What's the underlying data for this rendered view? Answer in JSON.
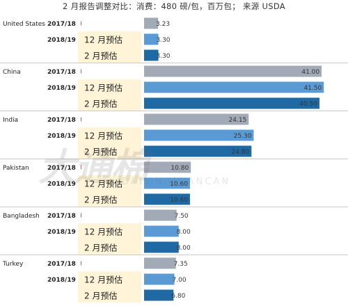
{
  "title": "2 月报告调整对比：消费：480 磅/包，百万包； 来源 USDA",
  "chart_data": {
    "type": "bar",
    "orientation": "horizontal",
    "title": "2 月报告调整对比：消费：480 磅/包，百万包； 来源 USDA",
    "groups": [
      {
        "country": "United States",
        "rows": [
          {
            "year": "2017/18",
            "estimate": "",
            "value": 3.23,
            "label": "3.23",
            "series": "2017/18"
          },
          {
            "year": "2018/19",
            "estimate": "12 月预估",
            "value": 3.3,
            "label": "3.30",
            "series": "12 月预估"
          },
          {
            "year": "",
            "estimate": "2 月预估",
            "value": 3.3,
            "label": "3.30",
            "series": "2 月预估"
          }
        ]
      },
      {
        "country": "China",
        "rows": [
          {
            "year": "2017/18",
            "estimate": "",
            "value": 41.0,
            "label": "41.00",
            "series": "2017/18"
          },
          {
            "year": "2018/19",
            "estimate": "12 月预估",
            "value": 41.5,
            "label": "41.50",
            "series": "12 月预估"
          },
          {
            "year": "",
            "estimate": "2 月预估",
            "value": 40.5,
            "label": "40.50",
            "series": "2 月预估"
          }
        ]
      },
      {
        "country": "India",
        "rows": [
          {
            "year": "2017/18",
            "estimate": "",
            "value": 24.15,
            "label": "24.15",
            "series": "2017/18"
          },
          {
            "year": "2018/19",
            "estimate": "12 月预估",
            "value": 25.3,
            "label": "25.30",
            "series": "12 月预估"
          },
          {
            "year": "",
            "estimate": "2 月预估",
            "value": 24.8,
            "label": "24.80",
            "series": "2 月预估"
          }
        ]
      },
      {
        "country": "Pakistan",
        "rows": [
          {
            "year": "2017/18",
            "estimate": "",
            "value": 10.8,
            "label": "10.80",
            "series": "2017/18"
          },
          {
            "year": "2018/19",
            "estimate": "12 月预估",
            "value": 10.6,
            "label": "10.60",
            "series": "12 月预估"
          },
          {
            "year": "",
            "estimate": "2 月预估",
            "value": 10.6,
            "label": "10.60",
            "series": "2 月预估"
          }
        ]
      },
      {
        "country": "Bangladesh",
        "rows": [
          {
            "year": "2017/18",
            "estimate": "",
            "value": 7.5,
            "label": "7.50",
            "series": "2017/18"
          },
          {
            "year": "2018/19",
            "estimate": "12 月预估",
            "value": 8.0,
            "label": "8.00",
            "series": "12 月预估"
          },
          {
            "year": "",
            "estimate": "2 月预估",
            "value": 8.0,
            "label": "8.00",
            "series": "2 月预估"
          }
        ]
      },
      {
        "country": "Turkey",
        "rows": [
          {
            "year": "2017/18",
            "estimate": "",
            "value": 7.35,
            "label": "7.35",
            "series": "2017/18"
          },
          {
            "year": "2018/19",
            "estimate": "12 月预估",
            "value": 7.0,
            "label": "7.00",
            "series": "12 月预估"
          },
          {
            "year": "",
            "estimate": "2 月预估",
            "value": 6.8,
            "label": "6.80",
            "series": "2 月预估"
          }
        ]
      }
    ],
    "xlim": [
      0,
      45
    ],
    "grid": false,
    "colors": {
      "2017/18": "#a2a9b7",
      "12 月预估": "#5b9bd5",
      "2 月预估": "#1f6aa5",
      "estimate_cell": "#fff4d8",
      "divider": "#c9c9c9"
    }
  },
  "watermark": {
    "text": "大通棉",
    "subtext": "DATONGMIANCAN"
  }
}
